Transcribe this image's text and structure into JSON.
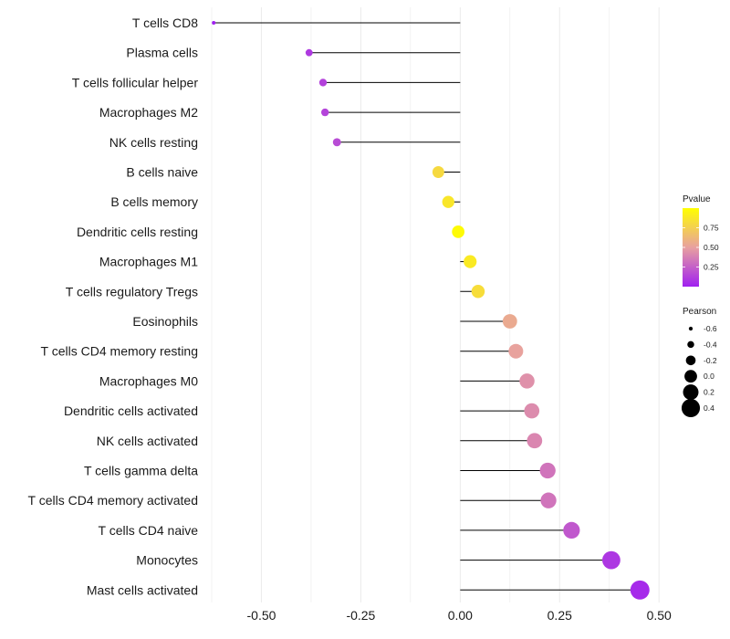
{
  "chart_data": {
    "type": "lollipop",
    "title": "",
    "xlabel": "",
    "ylabel": "",
    "xlim": [
      -0.625,
      0.55
    ],
    "xticks": [
      -0.5,
      -0.25,
      0.0,
      0.25,
      0.5
    ],
    "xtick_labels": [
      "-0.50",
      "-0.25",
      "0.00",
      "0.25",
      "0.50"
    ],
    "grid": "vertical",
    "points": [
      {
        "label": "T cells CD8",
        "pearson": -0.62,
        "pvalue": 0.001
      },
      {
        "label": "Plasma cells",
        "pearson": -0.38,
        "pvalue": 0.1
      },
      {
        "label": "T cells follicular helper",
        "pearson": -0.345,
        "pvalue": 0.13
      },
      {
        "label": "Macrophages M2",
        "pearson": -0.34,
        "pvalue": 0.14
      },
      {
        "label": "NK cells resting",
        "pearson": -0.31,
        "pvalue": 0.17
      },
      {
        "label": "B cells naive",
        "pearson": -0.055,
        "pvalue": 0.8
      },
      {
        "label": "B cells memory",
        "pearson": -0.03,
        "pvalue": 0.87
      },
      {
        "label": "Dendritic cells resting",
        "pearson": -0.005,
        "pvalue": 0.98
      },
      {
        "label": "Macrophages M1",
        "pearson": 0.025,
        "pvalue": 0.89
      },
      {
        "label": "T cells regulatory  Tregs ",
        "pearson": 0.045,
        "pvalue": 0.82
      },
      {
        "label": "Eosinophils",
        "pearson": 0.125,
        "pvalue": 0.55
      },
      {
        "label": "T cells CD4 memory resting",
        "pearson": 0.14,
        "pvalue": 0.51
      },
      {
        "label": "Macrophages M0",
        "pearson": 0.168,
        "pvalue": 0.44
      },
      {
        "label": "Dendritic cells activated",
        "pearson": 0.18,
        "pvalue": 0.42
      },
      {
        "label": "NK cells activated",
        "pearson": 0.187,
        "pvalue": 0.4
      },
      {
        "label": "T cells gamma delta",
        "pearson": 0.22,
        "pvalue": 0.33
      },
      {
        "label": "T cells CD4 memory activated",
        "pearson": 0.222,
        "pvalue": 0.33
      },
      {
        "label": "T cells CD4 naive",
        "pearson": 0.28,
        "pvalue": 0.22
      },
      {
        "label": "Monocytes",
        "pearson": 0.38,
        "pvalue": 0.09
      },
      {
        "label": "Mast cells activated",
        "pearson": 0.452,
        "pvalue": 0.04
      }
    ],
    "color_legend": {
      "title": "Pvalue",
      "range": [
        0,
        1
      ],
      "ticks": [
        0.25,
        0.5,
        0.75
      ],
      "tick_labels": [
        "0.25",
        "0.50",
        "0.75"
      ],
      "low_color": "#A020F0",
      "mid_color": "#E8A0A0",
      "high_color": "#FFFF00"
    },
    "size_legend": {
      "title": "Pearson",
      "values": [
        -0.6,
        -0.4,
        -0.2,
        0.0,
        0.2,
        0.4
      ],
      "labels": [
        "-0.6",
        "-0.4",
        "-0.2",
        "0.0",
        "0.2",
        "0.4"
      ]
    },
    "colors": {
      "stem": "#000000",
      "grid": "#ebebeb",
      "size_legend_fill": "#000000"
    }
  }
}
